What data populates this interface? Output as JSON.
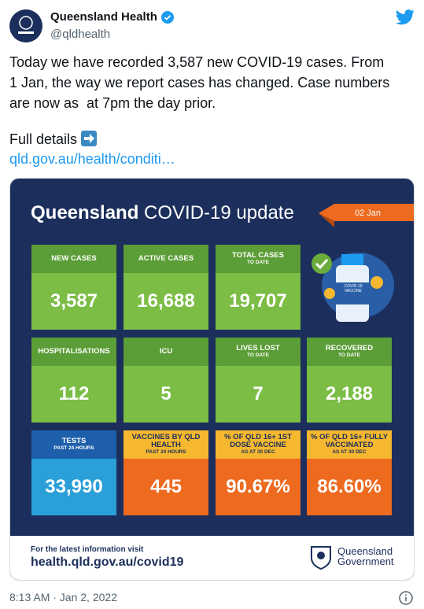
{
  "tweet": {
    "author": {
      "name": "Queensland Health",
      "handle": "@qldhealth"
    },
    "text": [
      "Today we have recorded 3,587 new COVID-19 cases. From",
      "1 Jan, the way we report cases has changed. Case numbers",
      "are now as  at 7pm the day prior."
    ],
    "full_details": "Full details",
    "link": "qld.gov.au/health/conditi…",
    "timestamp": "8:13 AM · Jan 2, 2022"
  },
  "card": {
    "title_bold": "Queensland",
    "title_rest": "COVID-19 update",
    "date": "02 Jan",
    "tiles": [
      {
        "label": "NEW CASES",
        "value": "3,587"
      },
      {
        "label": "ACTIVE CASES",
        "value": "16,688"
      },
      {
        "label": "TOTAL CASES",
        "sublabel": "TO DATE",
        "value": "19,707"
      },
      {
        "label": "HOSPITALISATIONS",
        "value": "112"
      },
      {
        "label": "ICU",
        "value": "5"
      },
      {
        "label": "LIVES LOST",
        "sublabel": "TO DATE",
        "value": "7"
      },
      {
        "label": "RECOVERED",
        "sublabel": "TO DATE",
        "value": "2,188"
      },
      {
        "label": "TESTS",
        "sublabel": "PAST 24 HOURS",
        "value": "33,990"
      },
      {
        "label": "VACCINES BY QLD HEALTH",
        "sublabel": "PAST 24 HOURS",
        "value": "445"
      },
      {
        "label": "% OF QLD 16+ 1ST DOSE VACCINE",
        "sublabel": "AS AT 30 DEC",
        "value": "90.67%"
      },
      {
        "label": "% OF QLD 16+ FULLY VACCINATED",
        "sublabel": "AS AT 30 DEC",
        "value": "86.60%"
      }
    ],
    "vaccine_label": "COVID-19 VACCINE",
    "footer": {
      "lead": "For the latest information visit",
      "url": "health.qld.gov.au/covid19"
    },
    "logo": {
      "line1": "Queensland",
      "line2": "Government"
    }
  }
}
